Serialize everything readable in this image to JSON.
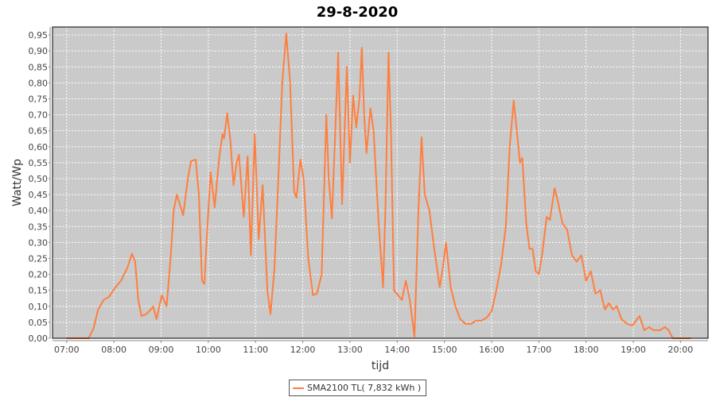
{
  "chart_data": {
    "type": "line",
    "title": "29-8-2020",
    "xlabel": "tijd",
    "ylabel": "Watt/Wp",
    "xlim": [
      "06:42",
      "20:35"
    ],
    "ylim": [
      0,
      0.975
    ],
    "x_ticks": [
      "07:00",
      "08:00",
      "09:00",
      "10:00",
      "11:00",
      "12:00",
      "13:00",
      "14:00",
      "15:00",
      "16:00",
      "17:00",
      "18:00",
      "19:00",
      "20:00"
    ],
    "y_ticks": [
      "0,00",
      "0,05",
      "0,10",
      "0,15",
      "0,20",
      "0,25",
      "0,30",
      "0,35",
      "0,40",
      "0,45",
      "0,50",
      "0,55",
      "0,60",
      "0,65",
      "0,70",
      "0,75",
      "0,80",
      "0,85",
      "0,90",
      "0,95"
    ],
    "grid": true,
    "legend_position": "bottom",
    "colors": {
      "series": "#ff7f3f",
      "plot_background": "#cacaca",
      "grid": "#ffffff"
    },
    "series": [
      {
        "name": "SMA2100 TL( 7,832 kWh )",
        "x": [
          "07:00",
          "07:28",
          "07:34",
          "07:40",
          "07:47",
          "07:54",
          "08:02",
          "08:09",
          "08:17",
          "08:23",
          "08:27",
          "08:31",
          "08:35",
          "08:41",
          "08:47",
          "08:50",
          "08:54",
          "09:01",
          "09:07",
          "09:12",
          "09:16",
          "09:20",
          "09:25",
          "09:28",
          "09:34",
          "09:38",
          "09:44",
          "09:48",
          "09:52",
          "09:55",
          "10:00",
          "10:03",
          "10:08",
          "10:14",
          "10:18",
          "10:20",
          "10:24",
          "10:28",
          "10:32",
          "10:36",
          "10:39",
          "10:45",
          "10:50",
          "10:54",
          "10:59",
          "11:04",
          "11:09",
          "11:15",
          "11:19",
          "11:24",
          "11:29",
          "11:34",
          "11:39",
          "11:44",
          "11:49",
          "11:52",
          "11:57",
          "12:01",
          "12:07",
          "12:13",
          "12:18",
          "12:24",
          "12:30",
          "12:33",
          "12:37",
          "12:42",
          "12:45",
          "12:47",
          "12:50",
          "12:56",
          "13:00",
          "13:04",
          "13:08",
          "13:12",
          "13:15",
          "13:18",
          "13:21",
          "13:26",
          "13:30",
          "13:36",
          "13:42",
          "13:45",
          "13:49",
          "13:52",
          "13:56",
          "14:01",
          "14:06",
          "14:11",
          "14:16",
          "14:22",
          "14:27",
          "14:31",
          "14:35",
          "14:41",
          "14:46",
          "14:54",
          "14:58",
          "15:02",
          "15:08",
          "15:14",
          "15:20",
          "15:27",
          "15:34",
          "15:40",
          "15:47",
          "15:54",
          "16:00",
          "16:06",
          "16:12",
          "16:18",
          "16:23",
          "16:28",
          "16:32",
          "16:36",
          "16:39",
          "16:44",
          "16:48",
          "16:52",
          "16:56",
          "17:00",
          "17:04",
          "17:10",
          "17:14",
          "17:20",
          "17:24",
          "17:30",
          "17:36",
          "17:42",
          "17:48",
          "17:54",
          "18:00",
          "18:06",
          "18:12",
          "18:18",
          "18:24",
          "18:29",
          "18:34",
          "18:39",
          "18:45",
          "18:52",
          "18:59",
          "19:05",
          "19:08",
          "19:14",
          "19:20",
          "19:26",
          "19:34",
          "19:40",
          "19:45",
          "19:50",
          "20:13"
        ],
        "values": [
          0,
          0,
          0.03,
          0.09,
          0.12,
          0.13,
          0.16,
          0.18,
          0.22,
          0.265,
          0.24,
          0.12,
          0.07,
          0.075,
          0.09,
          0.1,
          0.06,
          0.135,
          0.1,
          0.25,
          0.4,
          0.45,
          0.41,
          0.385,
          0.5,
          0.555,
          0.56,
          0.45,
          0.18,
          0.17,
          0.4,
          0.52,
          0.41,
          0.57,
          0.64,
          0.625,
          0.705,
          0.62,
          0.48,
          0.55,
          0.575,
          0.38,
          0.57,
          0.26,
          0.64,
          0.31,
          0.48,
          0.15,
          0.075,
          0.22,
          0.5,
          0.8,
          0.955,
          0.8,
          0.46,
          0.44,
          0.56,
          0.5,
          0.25,
          0.135,
          0.14,
          0.2,
          0.7,
          0.5,
          0.375,
          0.69,
          0.895,
          0.7,
          0.42,
          0.85,
          0.55,
          0.76,
          0.66,
          0.75,
          0.91,
          0.7,
          0.58,
          0.72,
          0.65,
          0.38,
          0.16,
          0.4,
          0.895,
          0.65,
          0.15,
          0.135,
          0.12,
          0.18,
          0.12,
          0.005,
          0.4,
          0.63,
          0.45,
          0.4,
          0.3,
          0.16,
          0.22,
          0.3,
          0.16,
          0.1,
          0.06,
          0.045,
          0.045,
          0.055,
          0.055,
          0.065,
          0.085,
          0.15,
          0.23,
          0.35,
          0.6,
          0.745,
          0.65,
          0.55,
          0.565,
          0.36,
          0.28,
          0.28,
          0.21,
          0.2,
          0.26,
          0.38,
          0.37,
          0.47,
          0.43,
          0.36,
          0.34,
          0.26,
          0.24,
          0.26,
          0.18,
          0.21,
          0.14,
          0.15,
          0.09,
          0.11,
          0.09,
          0.1,
          0.06,
          0.045,
          0.04,
          0.06,
          0.07,
          0.025,
          0.035,
          0.025,
          0.025,
          0.035,
          0.025,
          0,
          0
        ]
      }
    ]
  }
}
